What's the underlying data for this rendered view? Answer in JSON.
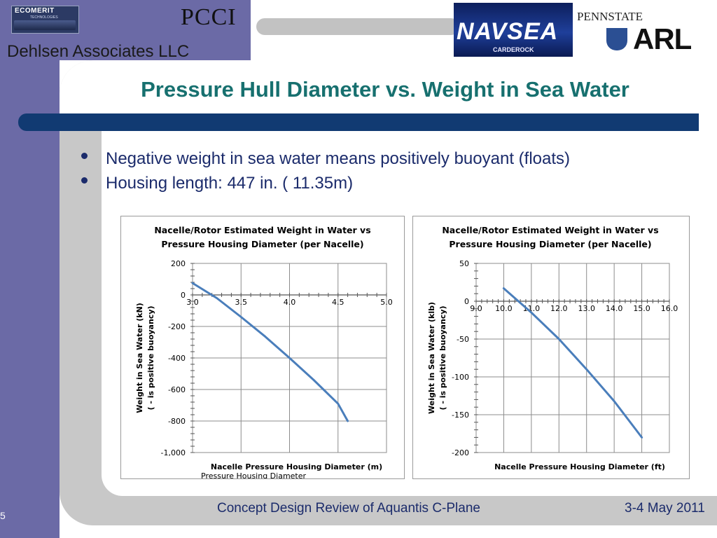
{
  "header": {
    "ecomerit_logo": "ECOMERIT",
    "ecomerit_sub": "TECHNOLOGIES",
    "pcci_logo": "PCCI",
    "company": "Dehlsen Associates LLC",
    "navsea_logo": "NAVSEA",
    "navsea_sub": "CARDEROCK",
    "pennstate_logo": "PENNSTATE",
    "arl_logo": "ARL"
  },
  "slide": {
    "title": "Pressure Hull Diameter vs. Weight in Sea Water",
    "bullets": [
      "Negative weight in sea water means positively buoyant (floats)",
      "Housing length:  447 in. ( 11.35m)"
    ]
  },
  "footer": {
    "text": "Concept Design Review of Aquantis C-Plane",
    "date": "3-4 May 2011",
    "slide_number": "5"
  },
  "colors": {
    "sidebar": "#6b6aa6",
    "title": "#17706f",
    "bullet_text": "#1b2b6b",
    "bar": "#113a72",
    "series": "#4a7ebb"
  },
  "chart_data": [
    {
      "type": "line",
      "title": "Nacelle/Rotor Estimated Weight in Water vs\nPressure Housing Diameter (per Nacelle)",
      "xlabel": "Nacelle Pressure Housing Diameter (m)",
      "ylabel": "Weight in Sea Water (kN)\n( - is positive buoyancy)",
      "xlim": [
        3.0,
        5.0
      ],
      "ylim": [
        -1000,
        200
      ],
      "xticks": [
        "3.0",
        "3.5",
        "4.0",
        "4.5",
        "5.0"
      ],
      "yticks": [
        "200",
        "0",
        "-200",
        "-400",
        "-600",
        "-800",
        "-1,000"
      ],
      "grid": true,
      "overlap_text": "Pressure Housing Diameter",
      "series": [
        {
          "x": [
            3.0,
            3.25,
            3.5,
            3.75,
            4.0,
            4.25,
            4.5,
            4.6
          ],
          "y": [
            75,
            -20,
            -140,
            -265,
            -400,
            -540,
            -690,
            -800
          ]
        }
      ]
    },
    {
      "type": "line",
      "title": "Nacelle/Rotor Estimated Weight in Water vs\nPressure Housing Diameter (per Nacelle)",
      "xlabel": "Nacelle Pressure Housing Diameter (ft)",
      "ylabel": "Weight in Sea Water (klb)\n( - is positive buoyancy)",
      "xlim": [
        9.0,
        16.0
      ],
      "ylim": [
        -200,
        50
      ],
      "xticks": [
        "9.0",
        "10.0",
        "11.0",
        "12.0",
        "13.0",
        "14.0",
        "15.0",
        "16.0"
      ],
      "yticks": [
        "50",
        "0",
        "-50",
        "-100",
        "-150",
        "-200"
      ],
      "grid": true,
      "series": [
        {
          "x": [
            10.0,
            11.0,
            12.0,
            13.0,
            14.0,
            15.0
          ],
          "y": [
            17,
            -15,
            -50,
            -90,
            -132,
            -180
          ]
        }
      ]
    }
  ]
}
